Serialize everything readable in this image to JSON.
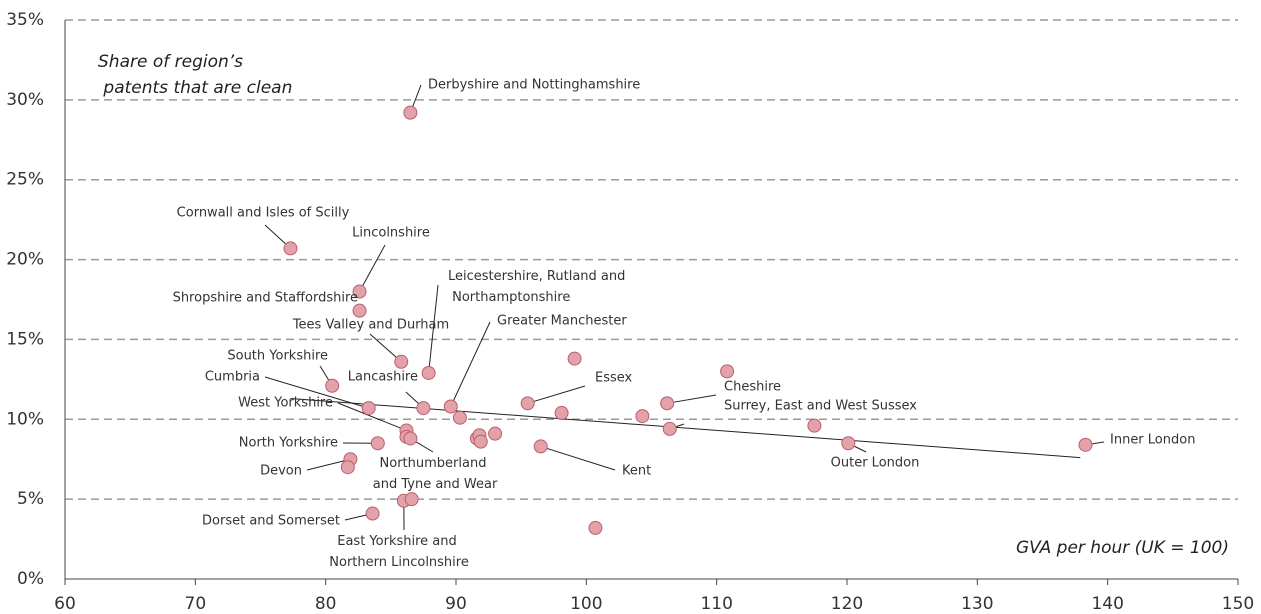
{
  "chart_data": {
    "type": "scatter",
    "title": "Share of region’s patents that are clean",
    "xlabel": "GVA per hour (UK = 100)",
    "color": "#e3a1a9",
    "edgecolor": "#b8606c",
    "xlim": [
      60,
      150
    ],
    "xticks": [
      60,
      70,
      80,
      90,
      100,
      110,
      120,
      130,
      140,
      150
    ],
    "ylim": [
      0,
      35
    ],
    "yticks": [
      {
        "value": 0,
        "label": "0%"
      },
      {
        "value": 5,
        "label": "5%"
      },
      {
        "value": 10,
        "label": "10%"
      },
      {
        "value": 15,
        "label": "15%"
      },
      {
        "value": 20,
        "label": "20%"
      },
      {
        "value": 25,
        "label": "25%"
      },
      {
        "value": 30,
        "label": "30%"
      },
      {
        "value": 35,
        "label": "35%"
      }
    ],
    "grid": true,
    "labels": [
      "Derbyshire and Nottinghamshire",
      "Cornwall and Isles of Scilly",
      "Lincolnshire",
      "Shropshire and Staffordshire",
      "Tees Valley and Durham",
      "Leicestershire, Rutland and Northamptonshire",
      "South Yorkshire",
      "Cumbria",
      "Lancashire",
      "Greater Manchester",
      null,
      "Essex",
      null,
      null,
      "Cheshire",
      null,
      null,
      "Surrey, East and West Sussex",
      null,
      "Outer London",
      "Inner London",
      "West Yorkshire",
      null,
      "Northumberland and Tyne and Wear",
      "North Yorkshire",
      "Devon",
      null,
      null,
      null,
      null,
      null,
      "Kent",
      "East Yorkshire and Northern Lincolnshire",
      null,
      "Dorset and Somerset",
      null
    ],
    "x": [
      86.5,
      77.3,
      82.6,
      82.6,
      85.8,
      87.9,
      80.5,
      83.3,
      87.5,
      89.6,
      90.3,
      95.5,
      99.1,
      98.1,
      106.2,
      110.8,
      104.3,
      106.4,
      117.5,
      120.1,
      138.3,
      86.2,
      86.2,
      86.5,
      84.0,
      81.9,
      81.7,
      91.6,
      91.8,
      91.9,
      93.0,
      96.5,
      86.0,
      86.6,
      83.6,
      100.7
    ],
    "values": [
      29.2,
      20.7,
      18.0,
      16.8,
      13.6,
      12.9,
      12.1,
      10.7,
      10.7,
      10.8,
      10.1,
      11.0,
      13.8,
      10.4,
      11.0,
      13.0,
      10.2,
      9.4,
      9.6,
      8.5,
      8.4,
      9.3,
      8.9,
      8.8,
      8.5,
      7.5,
      7.0,
      8.8,
      9.0,
      8.6,
      9.1,
      8.3,
      4.9,
      5.0,
      4.1,
      3.2
    ],
    "trendline": {
      "x": [
        77.3,
        137.9
      ],
      "values": [
        11.3,
        7.6
      ]
    }
  }
}
